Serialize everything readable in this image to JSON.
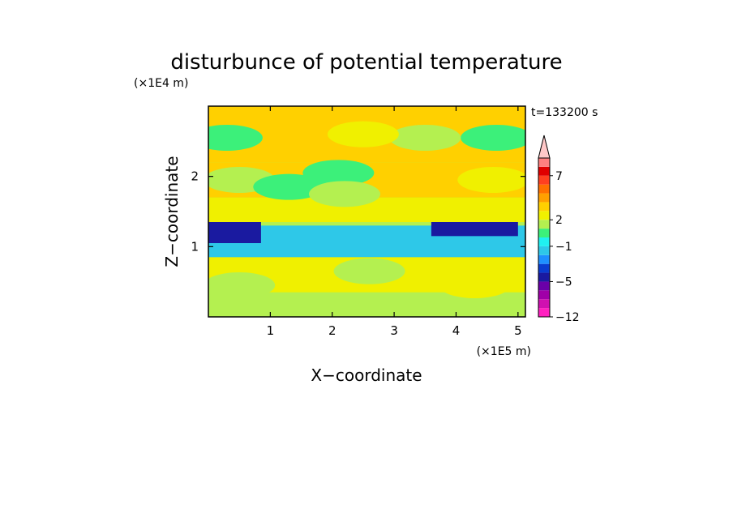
{
  "chart_data": {
    "type": "heatmap",
    "title": "disturbunce of potential temperature",
    "xlabel": "X−coordinate",
    "ylabel": "Z−coordinate",
    "x_unit": "(×1E5 m)",
    "y_unit": "(×1E4 m)",
    "time_label": "t=133200 s",
    "xlim": [
      0,
      5.12
    ],
    "ylim": [
      0,
      3.0
    ],
    "x_ticks": [
      1,
      2,
      3,
      4,
      5
    ],
    "x_tick_labels": [
      "1",
      "2",
      "3",
      "4",
      "5"
    ],
    "y_ticks": [
      1,
      2
    ],
    "y_tick_labels": [
      "1",
      "2"
    ],
    "colorbar": {
      "levels": [
        -12,
        -10,
        -8,
        -6,
        -5,
        -4,
        -3,
        -2,
        -1,
        0,
        1,
        2,
        3,
        4,
        5,
        6,
        7,
        8,
        9,
        10
      ],
      "colors": [
        "#ff20c0",
        "#d010b0",
        "#a000a8",
        "#6a00a8",
        "#1a1aa0",
        "#0a3cd0",
        "#1e90ff",
        "#2ec8e8",
        "#20f0f0",
        "#3cf07a",
        "#b4f050",
        "#f0f000",
        "#ffd000",
        "#ffa000",
        "#ff7000",
        "#ff4020",
        "#e00000",
        "#ff8080",
        "#ffc8c8"
      ],
      "labeled_levels": [
        "7",
        "2",
        "−1",
        "−5",
        "−12"
      ],
      "extend": "max"
    },
    "field_regions": [
      {
        "x": [
          0,
          5.12
        ],
        "z": [
          0,
          3.0
        ],
        "level": 1.0
      },
      {
        "x": [
          0,
          5.12
        ],
        "z": [
          0.0,
          0.35
        ],
        "level": 1.5
      },
      {
        "x": [
          0,
          5.12
        ],
        "z": [
          0.35,
          0.9
        ],
        "level": 2.0
      },
      {
        "x": [
          0,
          5.12
        ],
        "z": [
          0.85,
          1.3
        ],
        "level": -1.5
      },
      {
        "x": [
          0,
          0.85
        ],
        "z": [
          1.05,
          1.35
        ],
        "level": -4.5
      },
      {
        "x": [
          3.6,
          5.0
        ],
        "z": [
          1.15,
          1.35
        ],
        "level": -4.5
      },
      {
        "x": [
          0,
          5.12
        ],
        "z": [
          1.35,
          1.7
        ],
        "level": 2.5
      },
      {
        "x": [
          0,
          5.12
        ],
        "z": [
          1.7,
          2.2
        ],
        "level": 3.5
      },
      {
        "x": [
          0,
          5.12
        ],
        "z": [
          2.2,
          3.0
        ],
        "level": 3.0
      }
    ],
    "features": [
      {
        "x": 0.5,
        "z": 0.45,
        "level": 3.5
      },
      {
        "x": 2.6,
        "z": 0.65,
        "level": 3.5
      },
      {
        "x": 4.3,
        "z": 0.45,
        "level": 4.0
      },
      {
        "x": 0.5,
        "z": 1.95,
        "level": 4.5
      },
      {
        "x": 1.3,
        "z": 1.85,
        "level": -3.5
      },
      {
        "x": 2.1,
        "z": 2.05,
        "level": -6.0
      },
      {
        "x": 2.2,
        "z": 1.75,
        "level": 7.5
      },
      {
        "x": 4.6,
        "z": 1.95,
        "level": 6.0
      },
      {
        "x": 4.65,
        "z": 2.55,
        "level": -6.0
      },
      {
        "x": 3.5,
        "z": 2.55,
        "level": 4.5
      },
      {
        "x": 2.5,
        "z": 2.6,
        "level": 5.0
      },
      {
        "x": 0.3,
        "z": 2.55,
        "level": -2.0
      }
    ]
  }
}
